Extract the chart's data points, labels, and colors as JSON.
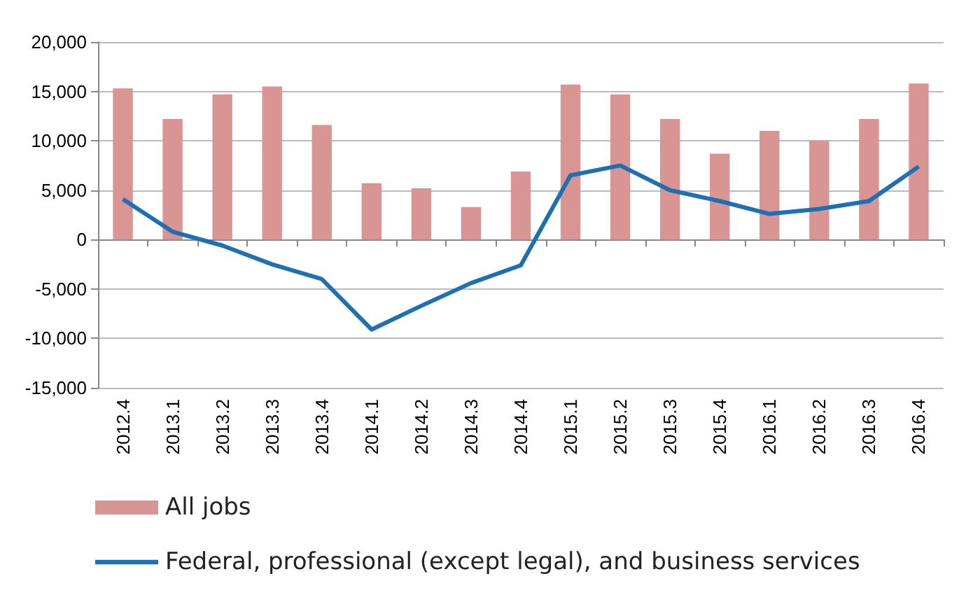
{
  "chart_data": {
    "type": "bar",
    "categories": [
      "2012.4",
      "2013.1",
      "2013.2",
      "2013.3",
      "2013.4",
      "2014.1",
      "2014.2",
      "2014.3",
      "2014.4",
      "2015.1",
      "2015.2",
      "2015.3",
      "2015.4",
      "2016.1",
      "2016.2",
      "2016.3",
      "2016.4"
    ],
    "series": [
      {
        "name": "All jobs",
        "color": "#d99594",
        "values": [
          15300,
          12200,
          14700,
          15500,
          11600,
          5700,
          5200,
          3300,
          6900,
          15700,
          14700,
          12200,
          8700,
          11000,
          10000,
          12200,
          15800
        ]
      },
      {
        "name": "Federal, professional (except legal), and business services",
        "type": "line",
        "color": "#1f6fb5",
        "values": [
          4100,
          800,
          -600,
          -2500,
          -4000,
          -9100,
          -6700,
          -4400,
          -2600,
          6500,
          7500,
          5000,
          3900,
          2600,
          3100,
          3900,
          7400
        ]
      }
    ],
    "ylim": [
      -15000,
      20000
    ],
    "yticks": [
      {
        "value": -15000,
        "label": "-15,000"
      },
      {
        "value": -10000,
        "label": "-10,000"
      },
      {
        "value": -5000,
        "label": "-5,000"
      },
      0,
      {
        "value": 5000,
        "label": "5,000"
      },
      {
        "value": 10000,
        "label": "10,000"
      },
      {
        "value": 15000,
        "label": "15,000"
      },
      {
        "value": 20000,
        "label": "20,000"
      }
    ],
    "grid": "y",
    "legend": "bottom",
    "marker": "none",
    "line_style": "solid"
  }
}
